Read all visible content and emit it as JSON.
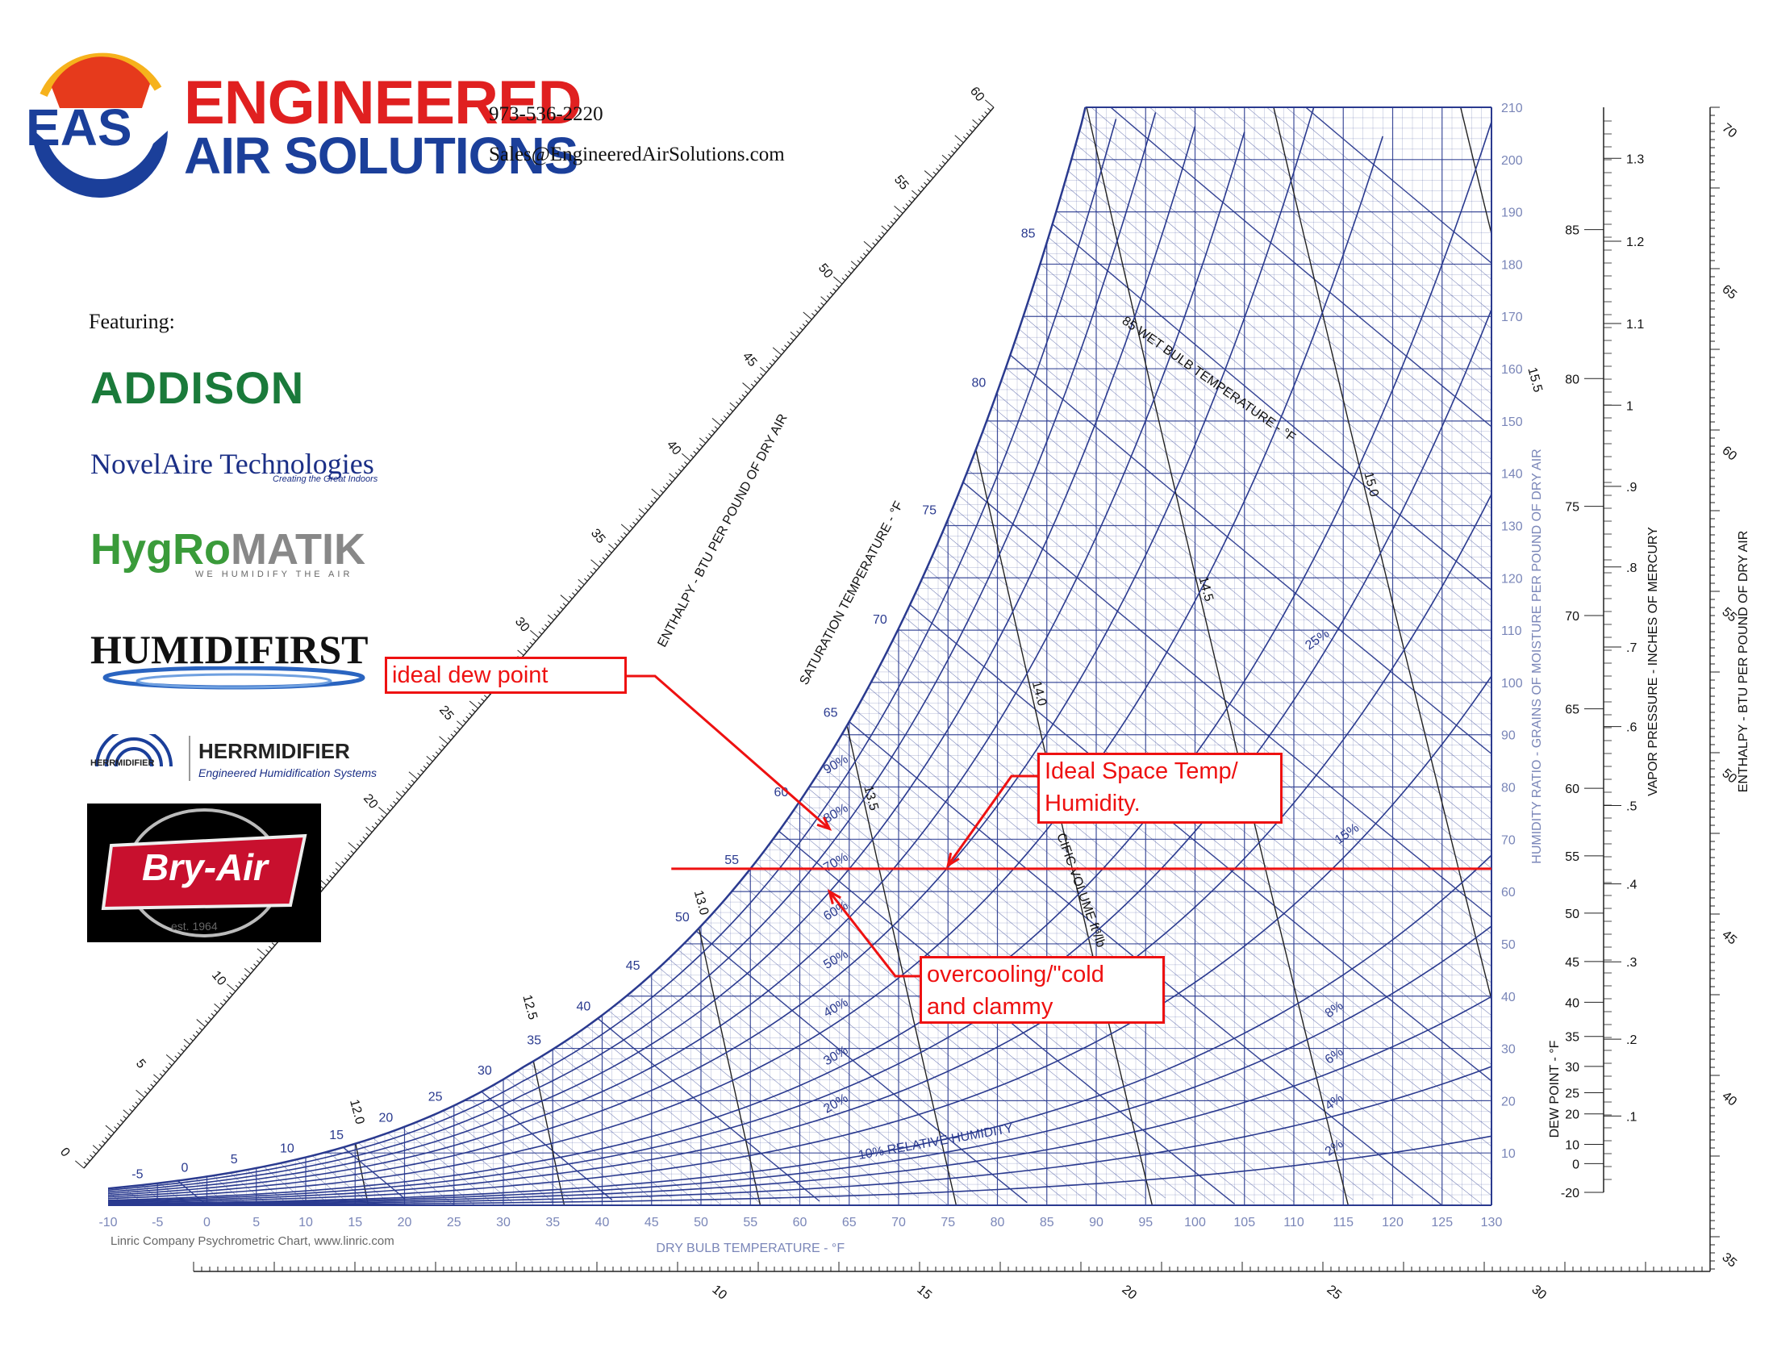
{
  "header": {
    "company_line1": "ENGINEERED",
    "company_line2": "AIR SOLUTIONS",
    "logo_letters": "EAS",
    "phone": "973-536-2220",
    "email": "Sales@EngineeredAirSolutions.com",
    "featuring": "Featuring:"
  },
  "brands": {
    "addison": "ADDISON",
    "novelaire": "NovelAire Technologies",
    "novelaire_tag": "Creating the Great Indoors",
    "hygromatik_a": "HygRo",
    "hygromatik_b": "MATIK",
    "hygromatik_tag": "WE HUMIDIFY THE AIR",
    "humidifirst": "HUMIDIFIRST",
    "herrmidifier": "HERRMIDIFIER",
    "herrmidifier_tag": "Engineered Humidification Systems",
    "herrmidifier_small": "HERRMIDIFIER",
    "bryair": "Bry-Air",
    "bryair_est": "est. 1964"
  },
  "annotations": {
    "ideal_dew_point": "ideal dew point",
    "ideal_space_line1": "Ideal Space Temp/",
    "ideal_space_line2": "Humidity.",
    "overcooling_line1": "overcooling/\"cold",
    "overcooling_line2": "and clammy"
  },
  "footer": "Linric Company Psychrometric Chart, www.linric.com",
  "colors": {
    "grid": "#2a3a8f",
    "annotation": "#e11111",
    "brand_red": "#e02020",
    "brand_blue": "#1b3f9a",
    "hygro_green": "#3a9b3a"
  },
  "chart_data": {
    "type": "psychrometric",
    "title": "",
    "xlabel": "DRY BULB TEMPERATURE - °F",
    "ylabel": "HUMIDITY RATIO - GRAINS OF MOISTURE PER POUND OF DRY AIR",
    "x_ticks": [
      -10,
      -5,
      0,
      5,
      10,
      15,
      20,
      25,
      30,
      35,
      40,
      45,
      50,
      55,
      60,
      65,
      70,
      75,
      80,
      85,
      90,
      95,
      100,
      105,
      110,
      115,
      120,
      125,
      130
    ],
    "y_ticks": [
      10,
      20,
      30,
      40,
      50,
      60,
      70,
      80,
      90,
      100,
      110,
      120,
      130,
      140,
      150,
      160,
      170,
      180,
      190,
      200,
      210
    ],
    "xlim": [
      -10,
      130
    ],
    "ylim": [
      0,
      210
    ],
    "relative_humidity_pct": [
      10,
      20,
      30,
      40,
      50,
      60,
      70,
      80,
      90
    ],
    "rh_label_text": "10% RELATIVE HUMIDITY",
    "rh_high_temp_labels": [
      "2%",
      "4%",
      "6%",
      "8%",
      "15%",
      "25%"
    ],
    "saturation_temp_ticks": [
      -5,
      0,
      5,
      10,
      15,
      20,
      25,
      30,
      35,
      40,
      45,
      50,
      55,
      60,
      65,
      70,
      75,
      80,
      85
    ],
    "saturation_label": "SATURATION TEMPERATURE - °F",
    "wet_bulb_ticks": [
      20,
      25,
      30,
      35,
      40,
      45,
      50,
      55,
      60,
      65,
      70,
      75,
      80,
      85,
      90
    ],
    "wet_bulb_label": "85 WET BULB TEMPERATURE - °F",
    "specific_volume": [
      12.0,
      12.5,
      13.0,
      13.5,
      14.0,
      14.5,
      15.0,
      15.5
    ],
    "specific_volume_label": "CIFIC VOLUME ft³/lb",
    "enthalpy_left_ticks": [
      0,
      5,
      10,
      15,
      20,
      25,
      30,
      35,
      40,
      45,
      50,
      55,
      60
    ],
    "enthalpy_left_label": "ENTHALPY - BTU PER POUND OF DRY AIR",
    "enthalpy_bottom_ticks": [
      10,
      15,
      20,
      25,
      30
    ],
    "enthalpy_right_ticks": [
      35,
      40,
      45,
      50,
      55,
      60,
      65,
      70
    ],
    "enthalpy_right_label": "ENTHALPY - BTU PER POUND OF DRY AIR",
    "dewpoint_ticks": [
      -20,
      0,
      10,
      20,
      25,
      30,
      35,
      40,
      45,
      50,
      55,
      60,
      65,
      70,
      75,
      80,
      85
    ],
    "dewpoint_label": "DEW POINT - °F",
    "vapor_pressure_ticks": [
      ".1",
      ".2",
      ".3",
      ".4",
      ".5",
      ".6",
      ".7",
      ".8",
      ".9",
      "1",
      "1.1",
      "1.2",
      "1.3"
    ],
    "vapor_pressure_label": "VAPOR PRESSURE - INCHES OF MERCURY",
    "highlight_dewpoint_f": 55,
    "annotated_points": {
      "ideal_dew_point": {
        "dry_bulb_f": 63,
        "humidity_ratio_gr": 72
      },
      "ideal_space": {
        "dry_bulb_f": 75,
        "humidity_ratio_gr": 65
      },
      "overcooling": {
        "dry_bulb_f": 63,
        "humidity_ratio_gr": 60
      }
    }
  }
}
